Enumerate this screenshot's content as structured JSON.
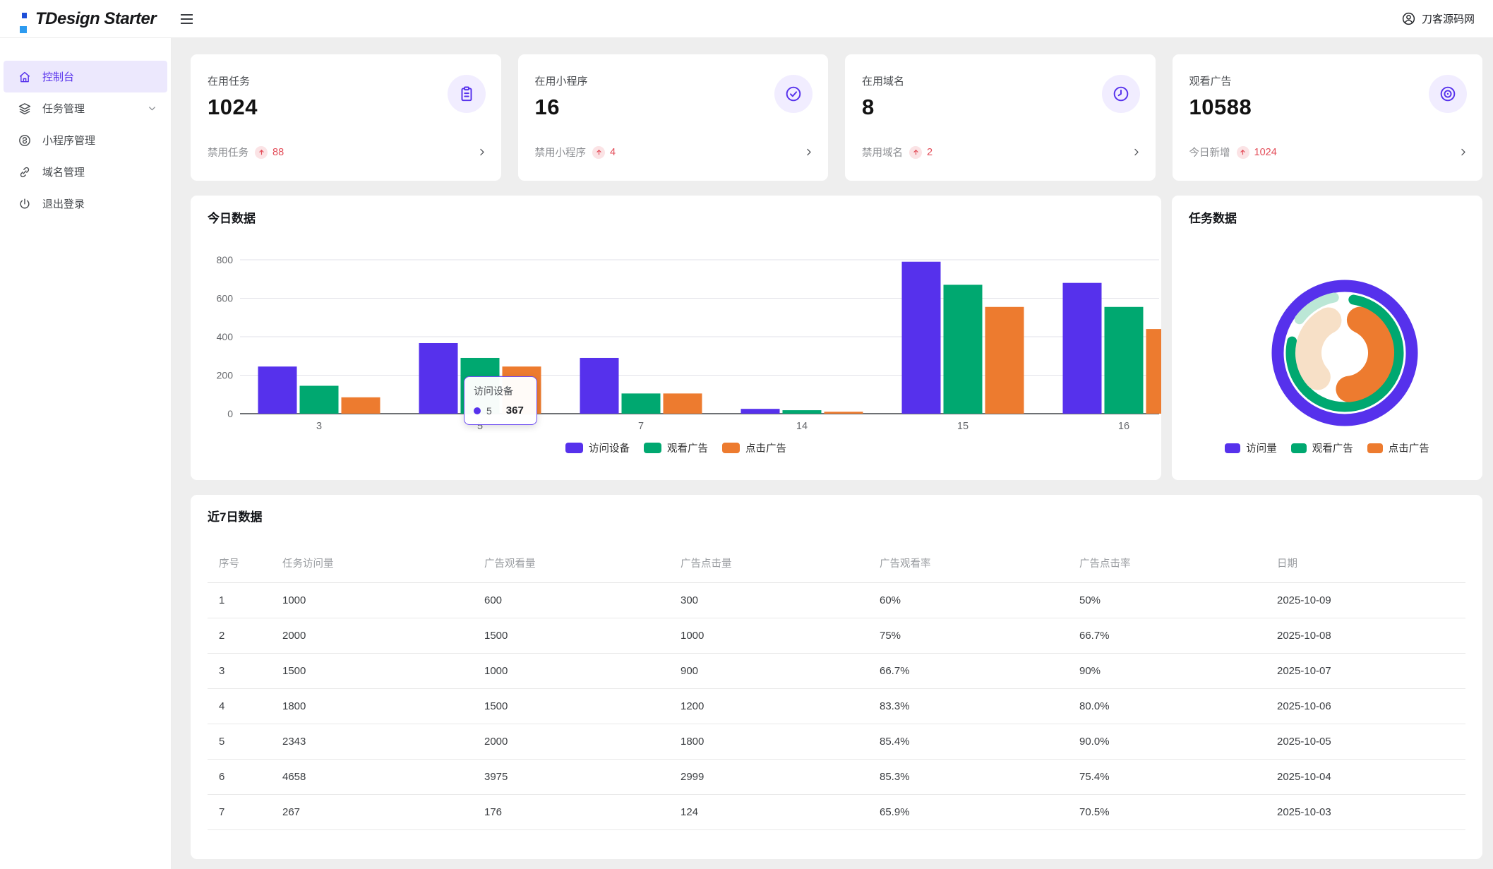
{
  "header": {
    "logo_text": "TDesign Starter",
    "user_name": "刀客源码网"
  },
  "sidebar": {
    "items": [
      {
        "label": "控制台",
        "icon": "home-icon",
        "active": true
      },
      {
        "label": "任务管理",
        "icon": "layers-icon",
        "expandable": true
      },
      {
        "label": "小程序管理",
        "icon": "miniprogram-icon"
      },
      {
        "label": "域名管理",
        "icon": "link-icon"
      },
      {
        "label": "退出登录",
        "icon": "power-icon"
      }
    ]
  },
  "stat_cards": [
    {
      "title": "在用任务",
      "value": "1024",
      "sub_label": "禁用任务",
      "sub_value": "88",
      "icon": "clipboard-icon"
    },
    {
      "title": "在用小程序",
      "value": "16",
      "sub_label": "禁用小程序",
      "sub_value": "4",
      "icon": "check-circle-icon"
    },
    {
      "title": "在用域名",
      "value": "8",
      "sub_label": "禁用域名",
      "sub_value": "2",
      "icon": "clock-icon"
    },
    {
      "title": "观看广告",
      "value": "10588",
      "sub_label": "今日新增",
      "sub_value": "1024",
      "icon": "view-icon"
    }
  ],
  "chart_data": [
    {
      "type": "bar",
      "title": "今日数据",
      "categories": [
        "3",
        "5",
        "7",
        "14",
        "15",
        "16"
      ],
      "series": [
        {
          "name": "访问设备",
          "color": "#5631ec",
          "values": [
            245,
            367,
            290,
            25,
            790,
            680
          ]
        },
        {
          "name": "观看广告",
          "color": "#00a870",
          "values": [
            145,
            290,
            105,
            18,
            670,
            555
          ]
        },
        {
          "name": "点击广告",
          "color": "#ed7b2f",
          "values": [
            85,
            245,
            105,
            10,
            555,
            440
          ]
        }
      ],
      "ylim": [
        0,
        800
      ],
      "yticks": [
        0,
        200,
        400,
        600,
        800
      ],
      "grid": true,
      "legend_position": "bottom",
      "tooltip": {
        "title": "访问设备",
        "category": "5",
        "value": "367"
      }
    },
    {
      "type": "pie",
      "title": "任务数据",
      "rings": [
        {
          "name": "访问量",
          "color": "#5631ec",
          "rest_color": null,
          "percent": 100
        },
        {
          "name": "观看广告",
          "color": "#00a870",
          "rest_color": "#bbe7d6",
          "percent": 81
        },
        {
          "name": "点击广告",
          "color": "#ed7b2f",
          "rest_color": "#f7e0c7",
          "percent": 55
        }
      ],
      "legend_position": "bottom"
    }
  ],
  "table": {
    "title": "近7日数据",
    "columns": [
      "序号",
      "任务访问量",
      "广告观看量",
      "广告点击量",
      "广告观看率",
      "广告点击率",
      "日期"
    ],
    "rows": [
      [
        "1",
        "1000",
        "600",
        "300",
        "60%",
        "50%",
        "2025-10-09"
      ],
      [
        "2",
        "2000",
        "1500",
        "1000",
        "75%",
        "66.7%",
        "2025-10-08"
      ],
      [
        "3",
        "1500",
        "1000",
        "900",
        "66.7%",
        "90%",
        "2025-10-07"
      ],
      [
        "4",
        "1800",
        "1500",
        "1200",
        "83.3%",
        "80.0%",
        "2025-10-06"
      ],
      [
        "5",
        "2343",
        "2000",
        "1800",
        "85.4%",
        "90.0%",
        "2025-10-05"
      ],
      [
        "6",
        "4658",
        "3975",
        "2999",
        "85.3%",
        "75.4%",
        "2025-10-04"
      ],
      [
        "7",
        "267",
        "176",
        "124",
        "65.9%",
        "70.5%",
        "2025-10-03"
      ]
    ]
  },
  "colors": {
    "accent": "#5631ec",
    "accent_light_bg": "#f1edff",
    "active_menu_bg": "#ece8fd",
    "success": "#00a870",
    "warning": "#ed7b2f",
    "error": "#e34d59",
    "error_chip_bg": "#fbe3e5",
    "teal_light": "#bbe7d6",
    "cream_light": "#f7e0c7",
    "page_bg": "#eeeeee"
  }
}
